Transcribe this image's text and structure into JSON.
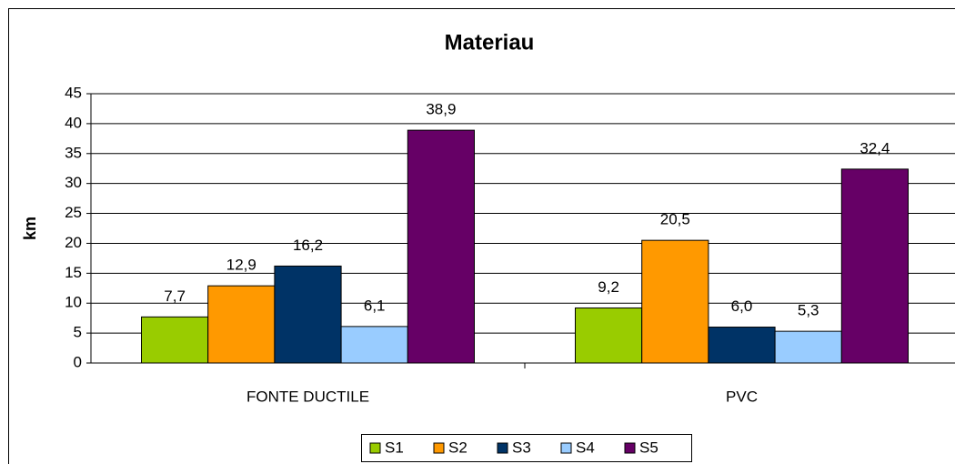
{
  "chart_data": {
    "type": "bar",
    "title": "Materiau",
    "y_label": "km",
    "categories": [
      "FONTE DUCTILE",
      "PVC"
    ],
    "series": [
      {
        "name": "S1",
        "color": "#99cc00",
        "values": [
          7.7,
          9.2
        ],
        "value_labels": [
          "7,7",
          "9,2"
        ]
      },
      {
        "name": "S2",
        "color": "#ff9900",
        "values": [
          12.9,
          20.5
        ],
        "value_labels": [
          "12,9",
          "20,5"
        ]
      },
      {
        "name": "S3",
        "color": "#003366",
        "values": [
          16.2,
          6.0
        ],
        "value_labels": [
          "16,2",
          "6,0"
        ]
      },
      {
        "name": "S4",
        "color": "#99ccff",
        "values": [
          6.1,
          5.3
        ],
        "value_labels": [
          "6,1",
          "5,3"
        ]
      },
      {
        "name": "S5",
        "color": "#660066",
        "values": [
          38.9,
          32.4
        ],
        "value_labels": [
          "38,9",
          "32,4"
        ]
      }
    ],
    "ylim": [
      0,
      45
    ],
    "yticks": [
      0,
      5,
      10,
      15,
      20,
      25,
      30,
      35,
      40,
      45
    ],
    "grid": true,
    "legend": "bottom"
  }
}
